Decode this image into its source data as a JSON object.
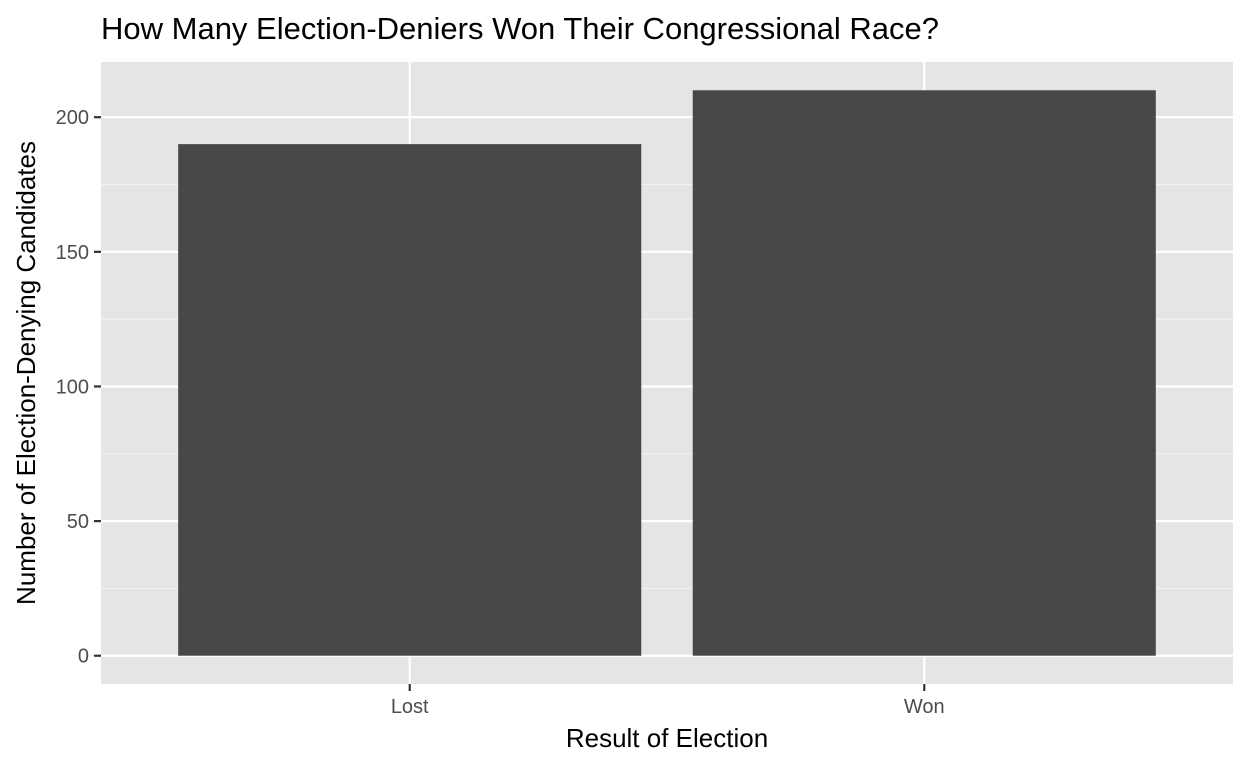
{
  "chart_data": {
    "type": "bar",
    "title": "How Many Election-Deniers Won Their Congressional Race?",
    "xlabel": "Result of Election",
    "ylabel": "Number of Election-Denying Candidates",
    "categories": [
      "Lost",
      "Won"
    ],
    "values": [
      190,
      210
    ],
    "ylim": [
      -10.5,
      220.5
    ],
    "yticks": [
      0,
      50,
      100,
      150,
      200
    ],
    "ytick_labels": [
      "0",
      "50",
      "100",
      "150",
      "200"
    ],
    "grid": true,
    "legend": "none"
  },
  "colors": {
    "panel_background": "#e5e5e5",
    "grid_major": "#ffffff",
    "grid_minor": "#f2f2f2",
    "bar_fill": "#484848",
    "tick_mark": "#333333",
    "tick_label": "#4d4d4d"
  }
}
